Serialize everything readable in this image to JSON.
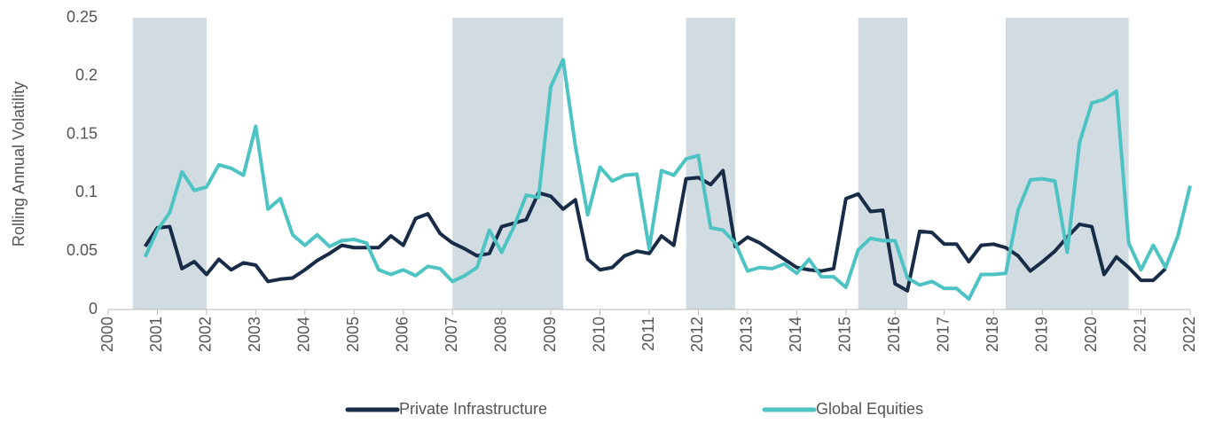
{
  "chart_data": {
    "type": "line",
    "ylabel": "Rolling Annual Volatility",
    "x": [
      2000.75,
      2001,
      2001.25,
      2001.5,
      2001.75,
      2002,
      2002.25,
      2002.5,
      2002.75,
      2003,
      2003.25,
      2003.5,
      2003.75,
      2004,
      2004.25,
      2004.5,
      2004.75,
      2005,
      2005.25,
      2005.5,
      2005.75,
      2006,
      2006.25,
      2006.5,
      2006.75,
      2007,
      2007.25,
      2007.5,
      2007.75,
      2008,
      2008.25,
      2008.5,
      2008.75,
      2009,
      2009.25,
      2009.5,
      2009.75,
      2010,
      2010.25,
      2010.5,
      2010.75,
      2011,
      2011.25,
      2011.5,
      2011.75,
      2012,
      2012.25,
      2012.5,
      2012.75,
      2013,
      2013.25,
      2013.5,
      2013.75,
      2014,
      2014.25,
      2014.5,
      2014.75,
      2015,
      2015.25,
      2015.5,
      2015.75,
      2016,
      2016.25,
      2016.5,
      2016.75,
      2017,
      2017.25,
      2017.5,
      2017.75,
      2018,
      2018.25,
      2018.5,
      2018.75,
      2019,
      2019.25,
      2019.5,
      2019.75,
      2020,
      2020.25,
      2020.5,
      2020.75,
      2021,
      2021.25,
      2021.5,
      2021.75,
      2022
    ],
    "series": [
      {
        "name": "Private Infrastructure",
        "color": "#182c47",
        "values": [
          0.054,
          0.07,
          0.071,
          0.035,
          0.041,
          0.03,
          0.043,
          0.034,
          0.04,
          0.038,
          0.024,
          0.026,
          0.027,
          0.034,
          0.042,
          0.048,
          0.055,
          0.053,
          0.053,
          0.053,
          0.063,
          0.055,
          0.078,
          0.082,
          0.065,
          0.057,
          0.052,
          0.046,
          0.048,
          0.071,
          0.074,
          0.077,
          0.1,
          0.097,
          0.086,
          0.094,
          0.043,
          0.034,
          0.036,
          0.046,
          0.05,
          0.048,
          0.063,
          0.055,
          0.112,
          0.113,
          0.107,
          0.119,
          0.054,
          0.062,
          0.057,
          0.05,
          0.043,
          0.036,
          0.034,
          0.033,
          0.035,
          0.095,
          0.099,
          0.084,
          0.085,
          0.022,
          0.016,
          0.067,
          0.066,
          0.056,
          0.056,
          0.041,
          0.055,
          0.056,
          0.053,
          0.046,
          0.033,
          0.041,
          0.05,
          0.062,
          0.073,
          0.071,
          0.03,
          0.045,
          0.036,
          0.025,
          0.025,
          0.035,
          null,
          null
        ]
      },
      {
        "name": "Global Equities",
        "color": "#4dc3c3",
        "values": [
          0.045,
          0.068,
          0.083,
          0.118,
          0.102,
          0.105,
          0.124,
          0.121,
          0.115,
          0.157,
          0.086,
          0.095,
          0.064,
          0.055,
          0.064,
          0.054,
          0.059,
          0.06,
          0.057,
          0.034,
          0.03,
          0.034,
          0.029,
          0.037,
          0.035,
          0.024,
          0.029,
          0.036,
          0.068,
          0.049,
          0.071,
          0.098,
          0.096,
          0.191,
          0.214,
          0.14,
          0.081,
          0.122,
          0.11,
          0.115,
          0.116,
          0.052,
          0.119,
          0.115,
          0.129,
          0.132,
          0.07,
          0.068,
          0.057,
          0.033,
          0.036,
          0.035,
          0.039,
          0.031,
          0.043,
          0.028,
          0.028,
          0.019,
          0.051,
          0.061,
          0.059,
          0.059,
          0.027,
          0.021,
          0.024,
          0.018,
          0.018,
          0.009,
          0.03,
          0.03,
          0.031,
          0.085,
          0.111,
          0.112,
          0.11,
          0.049,
          0.143,
          0.177,
          0.18,
          0.187,
          0.057,
          0.034,
          0.055,
          0.036,
          0.063,
          0.106
        ]
      }
    ],
    "shaded_ranges": [
      [
        2000.5,
        2002.0
      ],
      [
        2007.0,
        2009.25
      ],
      [
        2011.75,
        2012.75
      ],
      [
        2015.25,
        2016.25
      ],
      [
        2018.25,
        2020.75
      ]
    ],
    "shade_color": "#d0dbe2",
    "xlim": [
      2000,
      2022
    ],
    "xticks": [
      2000,
      2001,
      2002,
      2003,
      2004,
      2005,
      2006,
      2007,
      2008,
      2009,
      2010,
      2011,
      2012,
      2013,
      2014,
      2015,
      2016,
      2017,
      2018,
      2019,
      2020,
      2021,
      2022
    ],
    "ylim": [
      0,
      0.25
    ],
    "yticks": [
      0,
      0.05,
      0.1,
      0.15,
      0.2,
      0.25
    ],
    "legend": "bottom"
  }
}
